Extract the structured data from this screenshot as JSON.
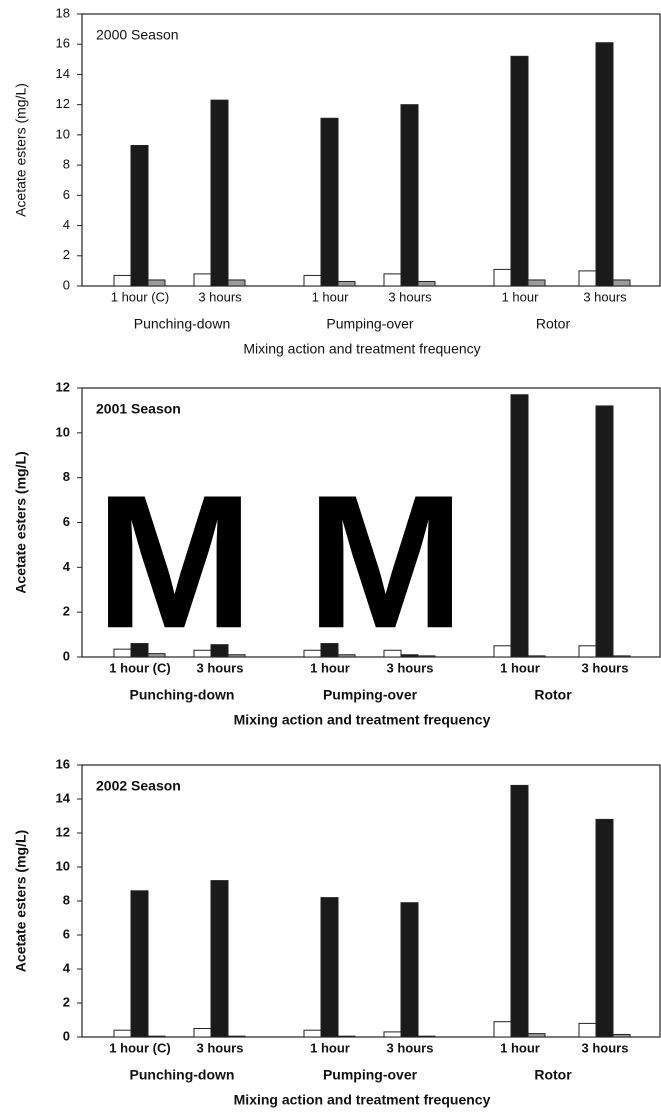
{
  "chart_data": [
    {
      "type": "bar",
      "title": "2000 Season",
      "categories": [
        "1 hour (C)",
        "3 hours",
        "1 hour",
        "3 hours",
        "1 hour",
        "3 hours"
      ],
      "groups": [
        "Punching-down",
        "Pumping-over",
        "Rotor"
      ],
      "xlabel": "Mixing action and treatment frequency",
      "ylabel": "Acetate esters (mg/L)",
      "ylim": [
        0,
        18
      ],
      "yticks": [
        0,
        2,
        4,
        6,
        8,
        10,
        12,
        14,
        16,
        18
      ],
      "series": [
        {
          "color": "#ffffff",
          "values": [
            0.7,
            0.8,
            0.7,
            0.8,
            1.1,
            1.0
          ]
        },
        {
          "color": "#1a1a1a",
          "values": [
            9.3,
            12.3,
            11.1,
            12.0,
            15.2,
            16.1
          ]
        },
        {
          "color": "#9a9a9a",
          "values": [
            0.4,
            0.4,
            0.3,
            0.3,
            0.4,
            0.4
          ]
        }
      ]
    },
    {
      "type": "bar",
      "title": "2001 Season",
      "categories": [
        "1 hour (C)",
        "3 hours",
        "1 hour",
        "3 hours",
        "1 hour",
        "3 hours"
      ],
      "groups": [
        "Punching-down",
        "Pumping-over",
        "Rotor"
      ],
      "xlabel": "Mixing action and treatment frequency",
      "ylabel": "Acetate esters (mg/L)",
      "ylim": [
        0,
        12
      ],
      "yticks": [
        0,
        2,
        4,
        6,
        8,
        10,
        12
      ],
      "annotation": "M M",
      "series": [
        {
          "color": "#ffffff",
          "values": [
            0.35,
            0.3,
            0.3,
            0.3,
            0.5,
            0.5
          ]
        },
        {
          "color": "#1a1a1a",
          "values": [
            0.6,
            0.55,
            0.6,
            0.1,
            11.7,
            11.2
          ]
        },
        {
          "color": "#9a9a9a",
          "values": [
            0.15,
            0.1,
            0.1,
            0.05,
            0.05,
            0.05
          ]
        }
      ]
    },
    {
      "type": "bar",
      "title": "2002 Season",
      "categories": [
        "1 hour (C)",
        "3 hours",
        "1 hour",
        "3 hours",
        "1 hour",
        "3 hours"
      ],
      "groups": [
        "Punching-down",
        "Pumping-over",
        "Rotor"
      ],
      "xlabel": "Mixing action and treatment frequency",
      "ylabel": "Acetate esters (mg/L)",
      "ylim": [
        0,
        16
      ],
      "yticks": [
        0,
        2,
        4,
        6,
        8,
        10,
        12,
        14,
        16
      ],
      "series": [
        {
          "color": "#ffffff",
          "values": [
            0.4,
            0.5,
            0.4,
            0.3,
            0.9,
            0.8
          ]
        },
        {
          "color": "#1a1a1a",
          "values": [
            8.6,
            9.2,
            8.2,
            7.9,
            14.8,
            12.8
          ]
        },
        {
          "color": "#9a9a9a",
          "values": [
            0.05,
            0.05,
            0.05,
            0.05,
            0.2,
            0.15
          ]
        }
      ]
    }
  ]
}
